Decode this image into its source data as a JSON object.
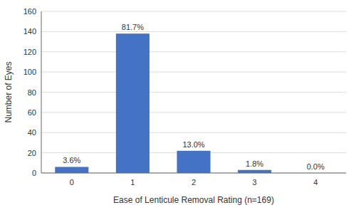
{
  "chart_data": {
    "type": "bar",
    "categories": [
      0,
      1,
      2,
      3,
      4
    ],
    "values": [
      6,
      138,
      22,
      3,
      0
    ],
    "annotations": [
      "3.6%",
      "81.7%",
      "13.0%",
      "1.8%",
      "0.0%"
    ],
    "color": "#4472C4",
    "xlabel": "Ease of Lenticule Removal Rating (n=169)",
    "ylabel": "Number of Eyes",
    "ylim": [
      0,
      160
    ],
    "yticks": [
      0,
      20,
      40,
      60,
      80,
      100,
      120,
      140,
      160
    ],
    "grid": true
  }
}
